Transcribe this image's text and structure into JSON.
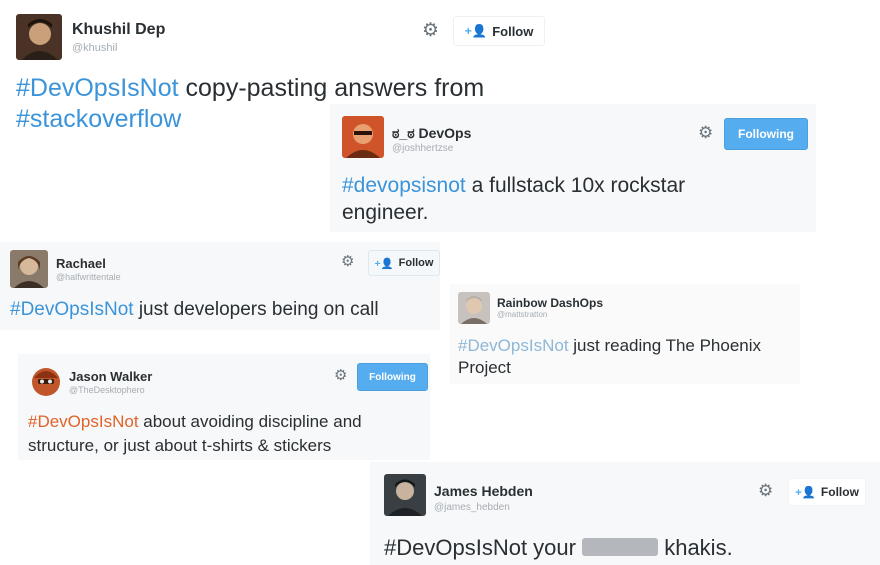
{
  "tweets": [
    {
      "name": "Khushil Dep",
      "handle": "@khushil",
      "button": "Follow",
      "hashtag": "#DevOpsIsNot",
      "text_after": " copy-pasting answers from",
      "hashtag2": "#stackoverflow"
    },
    {
      "name": "ಠ_ಠ DevOps",
      "handle": "@joshhertzse",
      "button": "Following",
      "hashtag": "#devopsisnot",
      "text_after": " a fullstack 10x rockstar engineer."
    },
    {
      "name": "Rachael",
      "handle": "@halfwrittentale",
      "button": "Follow",
      "hashtag": "#DevOpsIsNot",
      "text_after": " just developers being on call"
    },
    {
      "name": "Rainbow DashOps",
      "handle": "@mattstratton",
      "hashtag": "#DevOpsIsNot",
      "text_after": " just reading The Phoenix Project"
    },
    {
      "name": "Jason Walker",
      "handle": "@TheDesktophero",
      "button": "Following",
      "hashtag": "#DevOpsIsNot",
      "text_after": " about avoiding discipline and structure, or just about t-shirts & stickers"
    },
    {
      "name": "James Hebden",
      "handle": "@james_hebden",
      "button": "Follow",
      "hashtag": "#DevOpsIsNot",
      "text_before_redact": " your ",
      "text_after": " khakis."
    }
  ],
  "icons": {
    "settings": "gear-icon",
    "follow": "add-person-icon"
  },
  "colors": {
    "hashtag": "#3b94d9",
    "hashtag_orange": "#e0632a",
    "following_button": "#55acee"
  }
}
